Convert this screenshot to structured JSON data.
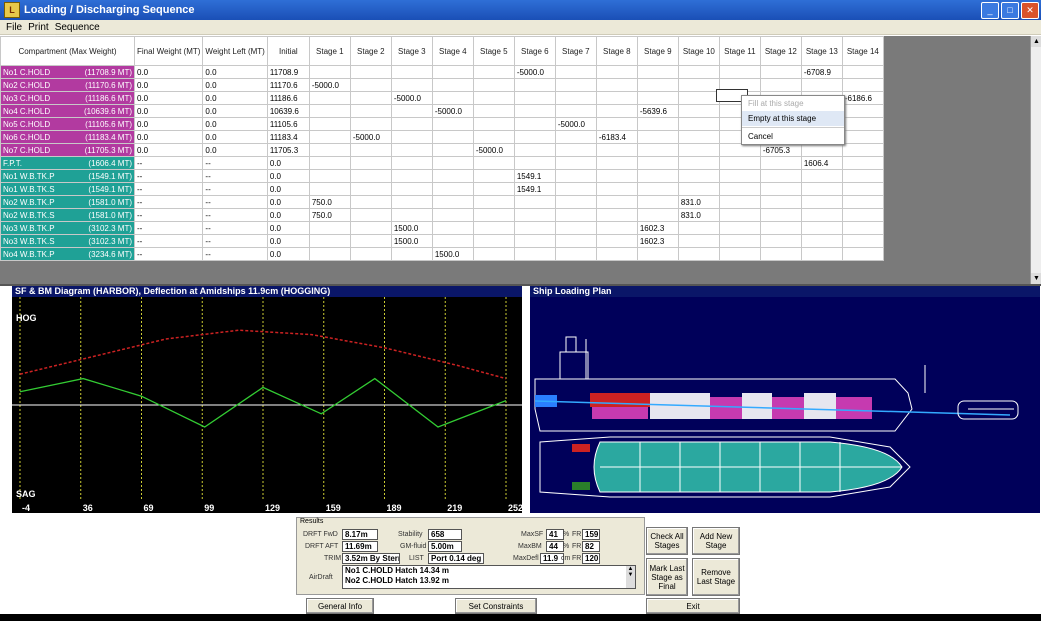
{
  "window": {
    "title": "Loading / Discharging Sequence",
    "icon": "app-icon"
  },
  "menu": [
    "File",
    "Print",
    "Sequence"
  ],
  "grid": {
    "headers": [
      "Compartment (Max Weight)",
      "Final Weight (MT)",
      "Weight Left (MT)",
      "Initial",
      "Stage 1",
      "Stage 2",
      "Stage 3",
      "Stage 4",
      "Stage 5",
      "Stage 6",
      "Stage 7",
      "Stage 8",
      "Stage 9",
      "Stage 10",
      "Stage 11",
      "Stage 12",
      "Stage 13",
      "Stage 14"
    ],
    "rows": [
      {
        "name": "No1 C.HOLD",
        "max": "(11708.9 MT)",
        "type": "hold",
        "final": "0.0",
        "left": "0.0",
        "cells": [
          "11708.9",
          "",
          "",
          "",
          "",
          "",
          "-5000.0",
          "",
          "",
          "",
          "",
          "",
          "",
          "-6708.9",
          ""
        ]
      },
      {
        "name": "No2 C.HOLD",
        "max": "(11170.6 MT)",
        "type": "hold",
        "final": "0.0",
        "left": "0.0",
        "cells": [
          "11170.6",
          "-5000.0",
          "",
          "",
          "",
          "",
          "",
          "",
          "",
          "",
          "",
          "",
          "",
          "",
          ""
        ]
      },
      {
        "name": "No3 C.HOLD",
        "max": "(11186.6 MT)",
        "type": "hold",
        "final": "0.0",
        "left": "0.0",
        "cells": [
          "11186.6",
          "",
          "",
          "-5000.0",
          "",
          "",
          "",
          "",
          "",
          "",
          "",
          "",
          "",
          "",
          "-6186.6"
        ]
      },
      {
        "name": "No4 C.HOLD",
        "max": "(10639.6 MT)",
        "type": "hold",
        "final": "0.0",
        "left": "0.0",
        "cells": [
          "10639.6",
          "",
          "",
          "",
          "-5000.0",
          "",
          "",
          "",
          "",
          "-5639.6",
          "",
          "",
          "",
          "",
          ""
        ]
      },
      {
        "name": "No5 C.HOLD",
        "max": "(11105.6 MT)",
        "type": "hold",
        "final": "0.0",
        "left": "0.0",
        "cells": [
          "11105.6",
          "",
          "",
          "",
          "",
          "",
          "",
          "-5000.0",
          "",
          "",
          "",
          "",
          "",
          "",
          ""
        ]
      },
      {
        "name": "No6 C.HOLD",
        "max": "(11183.4 MT)",
        "type": "hold",
        "final": "0.0",
        "left": "0.0",
        "cells": [
          "11183.4",
          "",
          "-5000.0",
          "",
          "",
          "",
          "",
          "",
          "-6183.4",
          "",
          "",
          "",
          "",
          "",
          ""
        ]
      },
      {
        "name": "No7 C.HOLD",
        "max": "(11705.3 MT)",
        "type": "hold",
        "final": "0.0",
        "left": "0.0",
        "cells": [
          "11705.3",
          "",
          "",
          "",
          "",
          "-5000.0",
          "",
          "",
          "",
          "",
          "",
          "",
          "-6705.3",
          "",
          ""
        ]
      },
      {
        "name": "F.P.T.",
        "max": "(1606.4 MT)",
        "type": "tank",
        "final": "--",
        "left": "--",
        "cells": [
          "0.0",
          "",
          "",
          "",
          "",
          "",
          "",
          "",
          "",
          "",
          "",
          "",
          "",
          "1606.4",
          ""
        ]
      },
      {
        "name": "No1 W.B.TK.P",
        "max": "(1549.1 MT)",
        "type": "tank",
        "final": "--",
        "left": "--",
        "cells": [
          "0.0",
          "",
          "",
          "",
          "",
          "",
          "1549.1",
          "",
          "",
          "",
          "",
          "",
          "",
          "",
          ""
        ]
      },
      {
        "name": "No1 W.B.TK.S",
        "max": "(1549.1 MT)",
        "type": "tank",
        "final": "--",
        "left": "--",
        "cells": [
          "0.0",
          "",
          "",
          "",
          "",
          "",
          "1549.1",
          "",
          "",
          "",
          "",
          "",
          "",
          "",
          ""
        ]
      },
      {
        "name": "No2 W.B.TK.P",
        "max": "(1581.0 MT)",
        "type": "tank",
        "final": "--",
        "left": "--",
        "cells": [
          "0.0",
          "750.0",
          "",
          "",
          "",
          "",
          "",
          "",
          "",
          "",
          "831.0",
          "",
          "",
          "",
          ""
        ]
      },
      {
        "name": "No2 W.B.TK.S",
        "max": "(1581.0 MT)",
        "type": "tank",
        "final": "--",
        "left": "--",
        "cells": [
          "0.0",
          "750.0",
          "",
          "",
          "",
          "",
          "",
          "",
          "",
          "",
          "831.0",
          "",
          "",
          "",
          ""
        ]
      },
      {
        "name": "No3 W.B.TK.P",
        "max": "(3102.3 MT)",
        "type": "tank",
        "final": "--",
        "left": "--",
        "cells": [
          "0.0",
          "",
          "",
          "1500.0",
          "",
          "",
          "",
          "",
          "",
          "1602.3",
          "",
          "",
          "",
          "",
          ""
        ]
      },
      {
        "name": "No3 W.B.TK.S",
        "max": "(3102.3 MT)",
        "type": "tank",
        "final": "--",
        "left": "--",
        "cells": [
          "0.0",
          "",
          "",
          "1500.0",
          "",
          "",
          "",
          "",
          "",
          "1602.3",
          "",
          "",
          "",
          "",
          ""
        ]
      },
      {
        "name": "No4 W.B.TK.P",
        "max": "(3234.6 MT)",
        "type": "tank",
        "final": "--",
        "left": "--",
        "cells": [
          "0.0",
          "",
          "",
          "",
          "1500.0",
          "",
          "",
          "",
          "",
          "",
          "",
          "",
          "",
          "",
          ""
        ]
      }
    ]
  },
  "context_menu": {
    "items": [
      "Fill at this stage",
      "Empty at this stage",
      "Cancel"
    ],
    "disabled_index": 0,
    "highlight_index": 1
  },
  "sf_panel": {
    "title": "SF & BM Diagram (HARBOR), Deflection at Amidships 11.9cm (HOGGING)",
    "hog_label": "HOG",
    "sag_label": "SAG",
    "axis_ticks": [
      "-4",
      "36",
      "69",
      "99",
      "129",
      "159",
      "189",
      "219",
      "252"
    ],
    "sf_curve": [
      [
        0,
        0.15
      ],
      [
        0.13,
        0.3
      ],
      [
        0.25,
        0.1
      ],
      [
        0.38,
        -0.25
      ],
      [
        0.5,
        0.2
      ],
      [
        0.62,
        -0.1
      ],
      [
        0.73,
        0.3
      ],
      [
        0.86,
        -0.25
      ],
      [
        1,
        0.05
      ]
    ],
    "bm_curve": [
      [
        0,
        0.35
      ],
      [
        0.15,
        0.55
      ],
      [
        0.3,
        0.75
      ],
      [
        0.45,
        0.85
      ],
      [
        0.6,
        0.8
      ],
      [
        0.75,
        0.65
      ],
      [
        0.9,
        0.45
      ],
      [
        1,
        0.3
      ]
    ],
    "colors": {
      "sf": "#33cc33",
      "bm": "#cc2222",
      "frame": "#cccc33",
      "axis": "#ffffff"
    }
  },
  "ship_panel": {
    "title": "Ship Loading Plan",
    "hull_color": "#2ba8a0",
    "cargo_color": "#c63ab0",
    "ballast_color": "#cc2222"
  },
  "results": {
    "group_label": "Results",
    "drft_fwd_label": "DRFT FwD",
    "drft_fwd": "8.17m",
    "drft_aft_label": "DRFT AFT",
    "drft_aft": "11.69m",
    "trim_label": "TRIM",
    "trim": "3.52m By Stern",
    "stability_label": "Stability",
    "stability": "658",
    "gm_label": "GM-fluid",
    "gm": "5.00m",
    "list_label": "LIST",
    "list": "Port 0.14 deg",
    "maxsf_label": "MaxSF",
    "maxsf": "41",
    "maxsf_unit": "%",
    "maxsf_fr_label": "FR",
    "maxsf_fr": "159",
    "maxbm_label": "MaxBM",
    "maxbm": "44",
    "maxbm_unit": "%",
    "maxbm_fr_label": "FR",
    "maxbm_fr": "82",
    "maxdefl_label": "MaxDefl",
    "maxdefl": "11.9",
    "maxdefl_unit": "cm",
    "maxdefl_fr_label": "FR",
    "maxdefl_fr": "120",
    "airdraft_label": "AirDraft",
    "airdraft_lines": [
      "No1 C.HOLD Hatch  14.34 m",
      "No2 C.HOLD Hatch  13.92 m"
    ]
  },
  "buttons": {
    "check_all": "Check All Stages",
    "add_new": "Add New Stage",
    "mark_last": "Mark Last Stage as Final",
    "remove_last": "Remove Last Stage",
    "general_info": "General Info",
    "set_constraints": "Set Constraints",
    "exit": "Exit"
  }
}
